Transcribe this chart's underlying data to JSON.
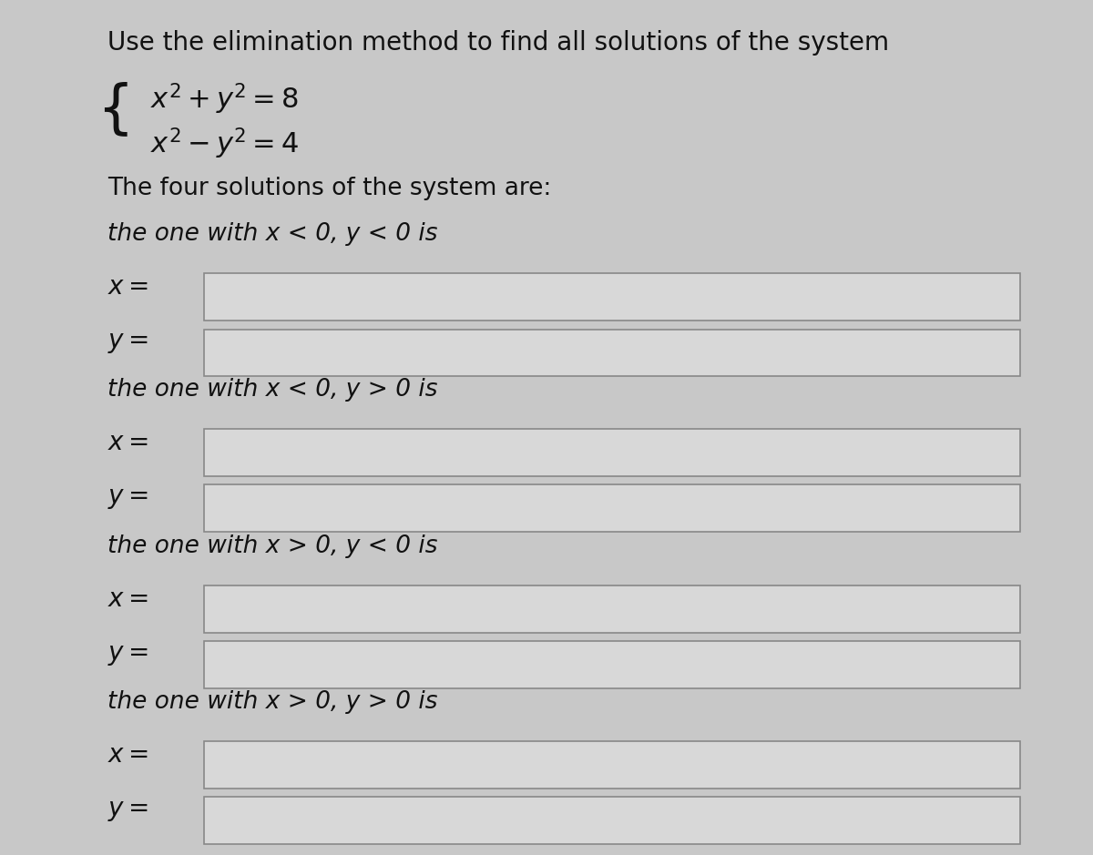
{
  "background_color": "#c8c8c8",
  "title_line": "Use the elimination method to find all solutions of the system",
  "eq1": "x² + y² = 8",
  "eq2": "x² − y² = 4",
  "line3": "The four solutions of the system are:",
  "sections": [
    {
      "condition": "the one with x < 0, y < 0 is",
      "label_x": "x =",
      "label_y": "y ="
    },
    {
      "condition": "the one with x < 0, y > 0 is",
      "label_x": "x =",
      "label_y": "y ="
    },
    {
      "condition": "the one with x > 0, y < 0 is",
      "label_x": "x =",
      "label_y": "y ="
    },
    {
      "condition": "the one with x > 0, y > 0 is",
      "label_x": "x =",
      "label_y": "y ="
    }
  ],
  "box_fill_color": "#d8d8d8",
  "box_edge_color": "#888888",
  "text_color": "#111111",
  "italic_color": "#111111",
  "title_fontsize": 20,
  "body_fontsize": 19,
  "math_fontsize": 22,
  "label_fontsize": 20,
  "condition_fontsize": 19
}
